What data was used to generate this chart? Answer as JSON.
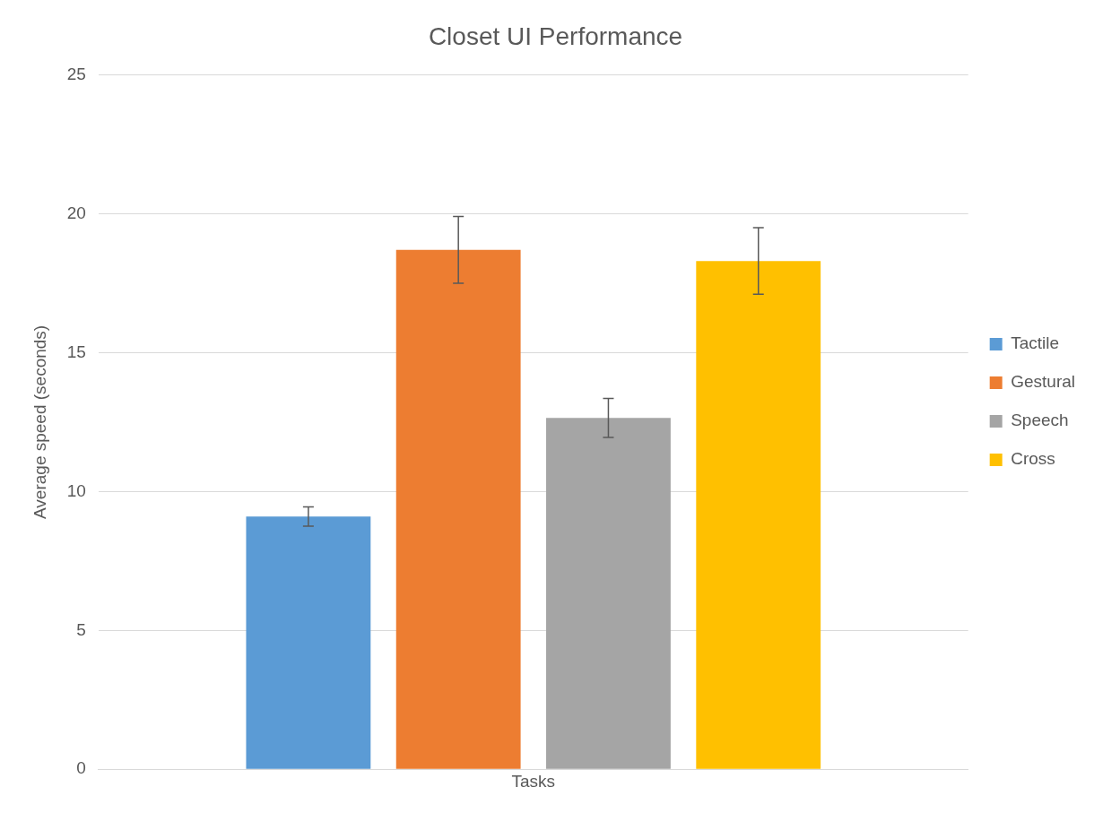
{
  "chart_data": {
    "type": "bar",
    "title": "Closet UI Performance",
    "ylabel": "Average speed (seconds)",
    "categories": [
      "Tasks"
    ],
    "series": [
      {
        "name": "Tactile",
        "color": "#5b9bd5",
        "values": [
          9.1
        ],
        "errors": [
          0.35
        ]
      },
      {
        "name": "Gestural",
        "color": "#ed7d31",
        "values": [
          18.7
        ],
        "errors": [
          1.2
        ]
      },
      {
        "name": "Speech",
        "color": "#a5a5a5",
        "values": [
          12.65
        ],
        "errors": [
          0.7
        ]
      },
      {
        "name": "Cross",
        "color": "#ffc000",
        "values": [
          18.3
        ],
        "errors": [
          1.2
        ]
      }
    ],
    "ylim": [
      0,
      25
    ],
    "yticks": [
      0,
      5,
      10,
      15,
      20,
      25
    ],
    "grid": "y",
    "legend": "right"
  }
}
